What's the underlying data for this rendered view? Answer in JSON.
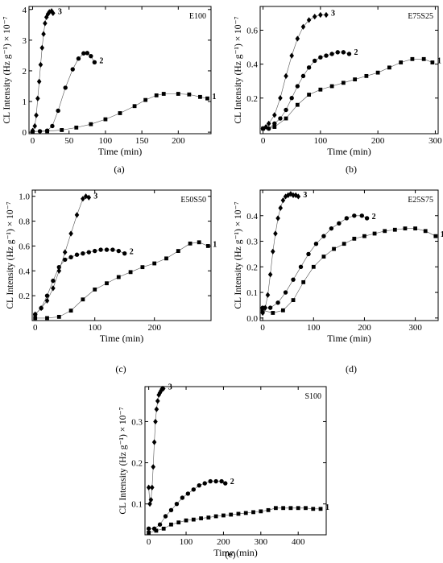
{
  "chart_data": [
    {
      "type": "scatter",
      "panel_id": "a",
      "caption": "(a)",
      "title": "E100",
      "xlabel": "Time (min)",
      "ylabel": "CL Intensity (Hz g⁻¹) × 10⁻⁷",
      "xlim": [
        -5,
        245
      ],
      "ylim": [
        -0.05,
        4.1
      ],
      "xticks": [
        0,
        50,
        100,
        150,
        200
      ],
      "yticks": [
        0,
        1,
        2,
        3,
        4
      ],
      "series": [
        {
          "name": "1",
          "marker": "square",
          "points": [
            [
              0,
              0.02
            ],
            [
              20,
              0.03
            ],
            [
              40,
              0.07
            ],
            [
              60,
              0.15
            ],
            [
              80,
              0.26
            ],
            [
              100,
              0.42
            ],
            [
              120,
              0.62
            ],
            [
              140,
              0.85
            ],
            [
              155,
              1.05
            ],
            [
              170,
              1.2
            ],
            [
              180,
              1.25
            ],
            [
              200,
              1.25
            ],
            [
              215,
              1.23
            ],
            [
              230,
              1.15
            ],
            [
              240,
              1.1
            ]
          ]
        },
        {
          "name": "2",
          "marker": "circle",
          "points": [
            [
              0,
              0.02
            ],
            [
              10,
              0.03
            ],
            [
              20,
              0.05
            ],
            [
              27,
              0.2
            ],
            [
              35,
              0.7
            ],
            [
              45,
              1.45
            ],
            [
              55,
              2.05
            ],
            [
              63,
              2.4
            ],
            [
              70,
              2.57
            ],
            [
              75,
              2.58
            ],
            [
              80,
              2.48
            ],
            [
              85,
              2.28
            ]
          ]
        },
        {
          "name": "3",
          "marker": "diamond",
          "points": [
            [
              0,
              0.05
            ],
            [
              3,
              0.2
            ],
            [
              5,
              0.55
            ],
            [
              7,
              1.1
            ],
            [
              9,
              1.65
            ],
            [
              11,
              2.2
            ],
            [
              13,
              2.75
            ],
            [
              15,
              3.2
            ],
            [
              17,
              3.55
            ],
            [
              19,
              3.75
            ],
            [
              21,
              3.85
            ],
            [
              23,
              3.92
            ],
            [
              26,
              3.95
            ],
            [
              28,
              3.88
            ]
          ]
        }
      ]
    },
    {
      "type": "scatter",
      "panel_id": "b",
      "caption": "(b)",
      "title": "E75S25",
      "xlabel": "Time (min)",
      "ylabel": "CL Intensity (Hz g⁻¹) × 10⁻⁷",
      "xlim": [
        -5,
        305
      ],
      "ylim": [
        -0.01,
        0.74
      ],
      "xticks": [
        0,
        100,
        200,
        300
      ],
      "yticks": [
        0.2,
        0.4,
        0.6
      ],
      "series": [
        {
          "name": "1",
          "marker": "square",
          "points": [
            [
              0,
              0.02
            ],
            [
              20,
              0.03
            ],
            [
              40,
              0.08
            ],
            [
              60,
              0.16
            ],
            [
              80,
              0.22
            ],
            [
              100,
              0.25
            ],
            [
              120,
              0.27
            ],
            [
              140,
              0.29
            ],
            [
              160,
              0.31
            ],
            [
              180,
              0.33
            ],
            [
              200,
              0.35
            ],
            [
              220,
              0.38
            ],
            [
              240,
              0.41
            ],
            [
              260,
              0.43
            ],
            [
              280,
              0.43
            ],
            [
              295,
              0.41
            ]
          ]
        },
        {
          "name": "2",
          "marker": "circle",
          "points": [
            [
              0,
              0.02
            ],
            [
              10,
              0.02
            ],
            [
              20,
              0.05
            ],
            [
              30,
              0.08
            ],
            [
              40,
              0.13
            ],
            [
              50,
              0.2
            ],
            [
              60,
              0.27
            ],
            [
              70,
              0.33
            ],
            [
              80,
              0.38
            ],
            [
              90,
              0.42
            ],
            [
              100,
              0.44
            ],
            [
              110,
              0.45
            ],
            [
              120,
              0.46
            ],
            [
              130,
              0.47
            ],
            [
              140,
              0.47
            ],
            [
              150,
              0.46
            ]
          ]
        },
        {
          "name": "3",
          "marker": "diamond",
          "points": [
            [
              0,
              0.02
            ],
            [
              5,
              0.03
            ],
            [
              10,
              0.05
            ],
            [
              20,
              0.1
            ],
            [
              30,
              0.2
            ],
            [
              40,
              0.33
            ],
            [
              50,
              0.45
            ],
            [
              60,
              0.55
            ],
            [
              70,
              0.62
            ],
            [
              80,
              0.66
            ],
            [
              90,
              0.68
            ],
            [
              100,
              0.69
            ],
            [
              110,
              0.69
            ]
          ]
        }
      ]
    },
    {
      "type": "scatter",
      "panel_id": "c",
      "caption": "(c)",
      "title": "E50S50",
      "xlabel": "Time (min)",
      "ylabel": "CL Intensity (Hz g⁻¹) × 10⁻⁷",
      "xlim": [
        -5,
        295
      ],
      "ylim": [
        0,
        1.05
      ],
      "xticks": [
        0,
        100,
        200
      ],
      "yticks": [
        0.2,
        0.4,
        0.6,
        0.8,
        1.0
      ],
      "series": [
        {
          "name": "1",
          "marker": "square",
          "points": [
            [
              0,
              0.02
            ],
            [
              20,
              0.02
            ],
            [
              40,
              0.03
            ],
            [
              60,
              0.08
            ],
            [
              80,
              0.17
            ],
            [
              100,
              0.25
            ],
            [
              120,
              0.3
            ],
            [
              140,
              0.35
            ],
            [
              160,
              0.39
            ],
            [
              180,
              0.43
            ],
            [
              200,
              0.46
            ],
            [
              220,
              0.5
            ],
            [
              240,
              0.56
            ],
            [
              260,
              0.62
            ],
            [
              275,
              0.63
            ],
            [
              290,
              0.6
            ]
          ]
        },
        {
          "name": "2",
          "marker": "circle",
          "points": [
            [
              0,
              0.05
            ],
            [
              10,
              0.1
            ],
            [
              20,
              0.2
            ],
            [
              30,
              0.32
            ],
            [
              40,
              0.43
            ],
            [
              50,
              0.49
            ],
            [
              60,
              0.51
            ],
            [
              70,
              0.53
            ],
            [
              80,
              0.54
            ],
            [
              90,
              0.55
            ],
            [
              100,
              0.56
            ],
            [
              110,
              0.57
            ],
            [
              120,
              0.57
            ],
            [
              130,
              0.57
            ],
            [
              140,
              0.56
            ],
            [
              150,
              0.54
            ]
          ]
        },
        {
          "name": "3",
          "marker": "diamond",
          "points": [
            [
              0,
              0.05
            ],
            [
              10,
              0.1
            ],
            [
              20,
              0.16
            ],
            [
              30,
              0.26
            ],
            [
              40,
              0.4
            ],
            [
              50,
              0.55
            ],
            [
              60,
              0.7
            ],
            [
              70,
              0.85
            ],
            [
              80,
              0.98
            ],
            [
              85,
              1.0
            ],
            [
              90,
              0.99
            ]
          ]
        }
      ]
    },
    {
      "type": "scatter",
      "panel_id": "d",
      "caption": "(d)",
      "title": "E25S75",
      "xlabel": "Time (min)",
      "ylabel": "CL Intensity (Hz g⁻¹) × 10⁻⁷",
      "xlim": [
        -5,
        345
      ],
      "ylim": [
        -0.01,
        0.5
      ],
      "xticks": [
        0,
        100,
        200,
        300
      ],
      "yticks": [
        0.0,
        0.1,
        0.2,
        0.3,
        0.4
      ],
      "series": [
        {
          "name": "1",
          "marker": "square",
          "points": [
            [
              0,
              0.03
            ],
            [
              20,
              0.02
            ],
            [
              40,
              0.03
            ],
            [
              60,
              0.07
            ],
            [
              80,
              0.14
            ],
            [
              100,
              0.2
            ],
            [
              120,
              0.24
            ],
            [
              140,
              0.27
            ],
            [
              160,
              0.29
            ],
            [
              180,
              0.31
            ],
            [
              200,
              0.32
            ],
            [
              220,
              0.33
            ],
            [
              240,
              0.34
            ],
            [
              260,
              0.345
            ],
            [
              280,
              0.35
            ],
            [
              300,
              0.35
            ],
            [
              320,
              0.34
            ],
            [
              340,
              0.32
            ]
          ]
        },
        {
          "name": "2",
          "marker": "circle",
          "points": [
            [
              0,
              0.04
            ],
            [
              15,
              0.04
            ],
            [
              30,
              0.06
            ],
            [
              45,
              0.1
            ],
            [
              60,
              0.15
            ],
            [
              75,
              0.2
            ],
            [
              90,
              0.25
            ],
            [
              105,
              0.29
            ],
            [
              120,
              0.32
            ],
            [
              135,
              0.35
            ],
            [
              150,
              0.37
            ],
            [
              165,
              0.39
            ],
            [
              180,
              0.4
            ],
            [
              195,
              0.4
            ],
            [
              205,
              0.39
            ]
          ]
        },
        {
          "name": "3",
          "marker": "diamond",
          "points": [
            [
              0,
              0.02
            ],
            [
              5,
              0.04
            ],
            [
              10,
              0.09
            ],
            [
              15,
              0.17
            ],
            [
              20,
              0.26
            ],
            [
              25,
              0.33
            ],
            [
              30,
              0.39
            ],
            [
              35,
              0.43
            ],
            [
              40,
              0.46
            ],
            [
              45,
              0.475
            ],
            [
              50,
              0.48
            ],
            [
              55,
              0.485
            ],
            [
              60,
              0.48
            ],
            [
              65,
              0.48
            ],
            [
              70,
              0.475
            ]
          ]
        }
      ]
    },
    {
      "type": "scatter",
      "panel_id": "e",
      "caption": "(e)",
      "title": "S100",
      "xlabel": "Time (min)",
      "ylabel": "CL Intensity (Hz g⁻¹) × 10⁻⁷",
      "xlim": [
        -10,
        475
      ],
      "ylim": [
        0.025,
        0.385
      ],
      "xticks": [
        0,
        100,
        200,
        300,
        400
      ],
      "yticks": [
        0.1,
        0.2,
        0.3
      ],
      "series": [
        {
          "name": "1",
          "marker": "square",
          "points": [
            [
              0,
              0.03
            ],
            [
              20,
              0.035
            ],
            [
              40,
              0.04
            ],
            [
              60,
              0.05
            ],
            [
              80,
              0.055
            ],
            [
              100,
              0.06
            ],
            [
              120,
              0.062
            ],
            [
              140,
              0.065
            ],
            [
              160,
              0.067
            ],
            [
              180,
              0.07
            ],
            [
              200,
              0.072
            ],
            [
              220,
              0.074
            ],
            [
              240,
              0.076
            ],
            [
              260,
              0.078
            ],
            [
              280,
              0.08
            ],
            [
              300,
              0.082
            ],
            [
              320,
              0.085
            ],
            [
              340,
              0.09
            ],
            [
              360,
              0.09
            ],
            [
              380,
              0.09
            ],
            [
              400,
              0.09
            ],
            [
              420,
              0.09
            ],
            [
              440,
              0.088
            ],
            [
              460,
              0.088
            ]
          ]
        },
        {
          "name": "2",
          "marker": "circle",
          "points": [
            [
              0,
              0.04
            ],
            [
              15,
              0.04
            ],
            [
              30,
              0.05
            ],
            [
              45,
              0.07
            ],
            [
              60,
              0.085
            ],
            [
              75,
              0.1
            ],
            [
              90,
              0.115
            ],
            [
              105,
              0.125
            ],
            [
              120,
              0.135
            ],
            [
              135,
              0.145
            ],
            [
              150,
              0.15
            ],
            [
              165,
              0.155
            ],
            [
              180,
              0.155
            ],
            [
              195,
              0.155
            ],
            [
              205,
              0.15
            ]
          ]
        },
        {
          "name": "3",
          "marker": "diamond",
          "points": [
            [
              0,
              0.14
            ],
            [
              3,
              0.1
            ],
            [
              6,
              0.11
            ],
            [
              9,
              0.14
            ],
            [
              12,
              0.19
            ],
            [
              15,
              0.25
            ],
            [
              18,
              0.3
            ],
            [
              21,
              0.33
            ],
            [
              24,
              0.35
            ],
            [
              27,
              0.365
            ],
            [
              30,
              0.37
            ],
            [
              33,
              0.375
            ],
            [
              36,
              0.38
            ],
            [
              39,
              0.38
            ]
          ]
        }
      ]
    }
  ]
}
